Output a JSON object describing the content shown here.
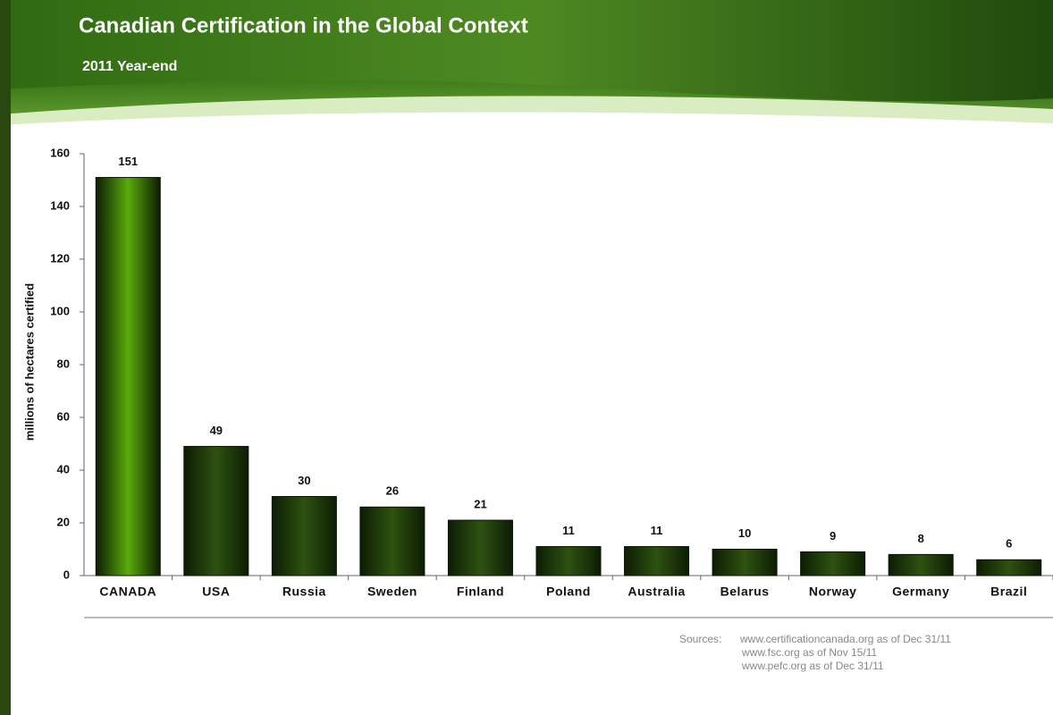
{
  "chart_data": {
    "type": "bar",
    "title": "Canadian Certification in the Global Context",
    "subtitle": "2011 Year-end",
    "y_label": "millions of hectares certified",
    "categories": [
      "CANADA",
      "USA",
      "Russia",
      "Sweden",
      "Finland",
      "Poland",
      "Australia",
      "Belarus",
      "Norway",
      "Germany",
      "Brazil"
    ],
    "values": [
      151,
      49,
      30,
      26,
      21,
      11,
      11,
      10,
      9,
      8,
      6
    ],
    "colors": [
      "#5aab0c",
      "#2e5210",
      "#2e5210",
      "#2e5210",
      "#2e5210",
      "#2e5210",
      "#2e5210",
      "#2e5210",
      "#2e5210",
      "#2e5210",
      "#2e5210"
    ],
    "ylim": [
      0,
      160
    ],
    "yticks": [
      0,
      20,
      40,
      60,
      80,
      100,
      120,
      140,
      160
    ],
    "grid": false,
    "sources_label": "Sources:",
    "sources": [
      "www.certificationcanada.org  as of Dec 31/11",
      "www.fsc.org  as of Nov 15/11",
      "www.pefc.org  as of Dec 31/11"
    ]
  }
}
